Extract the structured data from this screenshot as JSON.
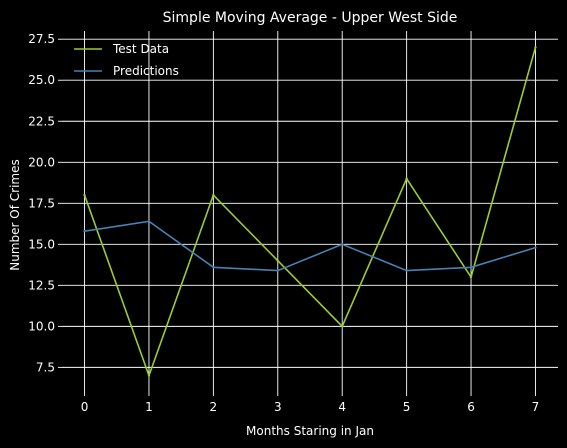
{
  "chart_data": {
    "type": "line",
    "title": "Simple Moving Average - Upper West Side",
    "xlabel": "Months Staring in Jan",
    "ylabel": "Number Of Crimes",
    "x": [
      0,
      1,
      2,
      3,
      4,
      5,
      6,
      7
    ],
    "xticks": [
      "0",
      "1",
      "2",
      "3",
      "4",
      "5",
      "6",
      "7"
    ],
    "yticks": [
      "7.5",
      "10.0",
      "12.5",
      "15.0",
      "17.5",
      "20.0",
      "22.5",
      "25.0",
      "27.5"
    ],
    "ytick_values": [
      7.5,
      10.0,
      12.5,
      15.0,
      17.5,
      20.0,
      22.5,
      25.0,
      27.5
    ],
    "xlim": [
      -0.35,
      7.35
    ],
    "ylim": [
      6.0,
      28.0
    ],
    "grid": true,
    "legend_position": "top-left",
    "series": [
      {
        "name": "Test Data",
        "color": "#9acd32",
        "values": [
          18,
          7,
          18,
          14,
          10,
          19,
          13,
          27
        ]
      },
      {
        "name": "Predictions",
        "color": "#4682b4",
        "values": [
          15.8,
          16.4,
          13.6,
          13.4,
          15.0,
          13.4,
          13.6,
          14.8
        ]
      }
    ]
  }
}
